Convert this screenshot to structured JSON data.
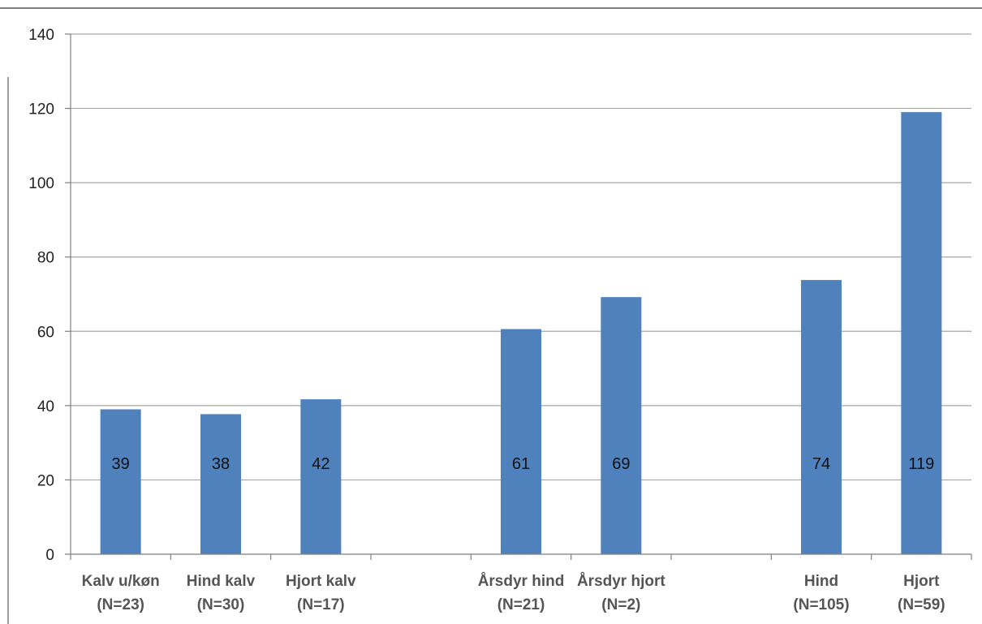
{
  "chart_data": {
    "type": "bar",
    "slots": [
      {
        "label": [
          "Kalv u/køn",
          "(N=23)"
        ],
        "value": 39,
        "data_label": "39"
      },
      {
        "label": [
          "Hind kalv",
          "(N=30)"
        ],
        "value": 37.7,
        "data_label": "38"
      },
      {
        "label": [
          "Hjort kalv",
          "(N=17)"
        ],
        "value": 41.7,
        "data_label": "42"
      },
      {
        "label": [
          "",
          ""
        ],
        "value": null,
        "data_label": ""
      },
      {
        "label": [
          "Årsdyr hind",
          "(N=21)"
        ],
        "value": 60.6,
        "data_label": "61"
      },
      {
        "label": [
          "Årsdyr hjort",
          "(N=2)"
        ],
        "value": 69.2,
        "data_label": "69"
      },
      {
        "label": [
          "",
          ""
        ],
        "value": null,
        "data_label": ""
      },
      {
        "label": [
          "Hind",
          "(N=105)"
        ],
        "value": 73.8,
        "data_label": "74"
      },
      {
        "label": [
          "Hjort",
          "(N=59)"
        ],
        "value": 119,
        "data_label": "119"
      }
    ],
    "y_ticks": [
      "0",
      "20",
      "40",
      "60",
      "80",
      "100",
      "120",
      "140"
    ],
    "ylim": [
      0,
      140
    ],
    "grid": true,
    "legend": "none",
    "bar_color": "#4F81BD",
    "grid_color": "#A6A6A6"
  }
}
